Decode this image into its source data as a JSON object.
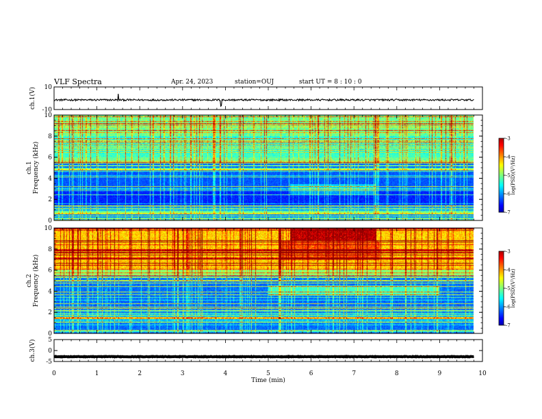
{
  "header": {
    "title": "VLF Spectra",
    "date": "Apr. 24, 2023",
    "station": "station=OUJ",
    "start": "start  UT  =   8  : 10 : 0"
  },
  "colors": {
    "spectrogram_low": "#00008f",
    "spectrogram_mid": "#00ff80",
    "spectrogram_high": "#ff0000",
    "trace": "#000000"
  },
  "chart_data": [
    {
      "type": "line",
      "panel": "ch1-waveform",
      "ylabel": "ch.1(V)",
      "ylim": [
        -10,
        10
      ],
      "yticks": [
        "10",
        "-10"
      ],
      "xlim": [
        0,
        10
      ],
      "description_values": {
        "baseline": -1.5,
        "spike_times_min": [
          1.5,
          3.9
        ]
      }
    },
    {
      "type": "heatmap",
      "panel": "ch1-spectrogram",
      "ylabel": "ch.1\nFrequency (kHz)",
      "ylim": [
        0,
        10
      ],
      "yticks": [
        "0",
        "2",
        "4",
        "6",
        "8",
        "10"
      ],
      "xlim": [
        0,
        10
      ],
      "colorbar": {
        "label": "log(PSD)(V²/Hz)",
        "range": [
          -7,
          -3
        ],
        "ticks": [
          "-3",
          "-4",
          "-5",
          "-6",
          "-7"
        ]
      }
    },
    {
      "type": "heatmap",
      "panel": "ch2-spectrogram",
      "ylabel": "ch.2\nFrequency (kHz)",
      "ylim": [
        0,
        10
      ],
      "yticks": [
        "0",
        "2",
        "4",
        "6",
        "8",
        "10"
      ],
      "xlim": [
        0,
        10
      ],
      "colorbar": {
        "label": "log(PSD)(V²/Hz)",
        "range": [
          -7,
          -3
        ],
        "ticks": [
          "-3",
          "-4",
          "-5",
          "-6",
          "-7"
        ]
      }
    },
    {
      "type": "line",
      "panel": "ch3-waveform",
      "ylabel": "ch.3(V)",
      "ylim": [
        -5,
        5
      ],
      "yticks": [
        "5",
        "0",
        "-5"
      ],
      "xlim": [
        0,
        10
      ],
      "description_values": {
        "baseline": -2.8
      }
    }
  ],
  "xaxis": {
    "label": "Time  (min)",
    "ticks": [
      "0",
      "1",
      "2",
      "3",
      "4",
      "5",
      "6",
      "7",
      "8",
      "9",
      "10"
    ],
    "data_end_min": 9.8
  }
}
